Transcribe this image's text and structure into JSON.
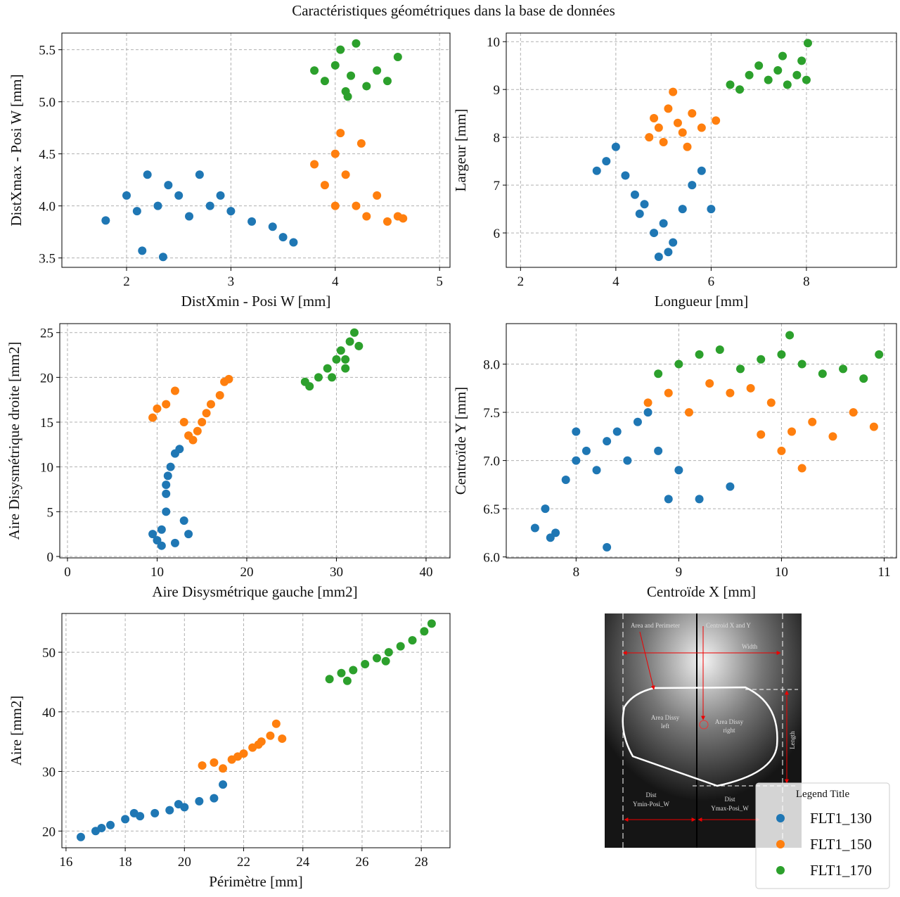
{
  "title": "Caractéristiques géométriques dans la base de données",
  "legend": {
    "title": "Legend Title"
  },
  "diagram": {
    "labels": [
      "Area and Perimeter",
      "Centroid X and Y",
      "Width",
      "Area  Dissy",
      "left",
      "Area  Dissy",
      "right",
      "Length",
      "Dist",
      "Ymin-Posi_W",
      "Dist",
      "Ymax-Posi_W"
    ]
  },
  "chart_data": [
    {
      "type": "scatter",
      "xlabel": "DistXmin - Posi W [mm]",
      "ylabel": "DistXmax - Posi W [mm]",
      "grid": true,
      "xlim": [
        1.38,
        5.1
      ],
      "ylim": [
        3.41,
        5.66
      ],
      "xticks": [
        2,
        3,
        4,
        5
      ],
      "yticks": [
        3.5,
        {
          "value": 4,
          "label": "4.0"
        },
        4.5,
        {
          "value": 5,
          "label": "5.0"
        },
        5.5
      ],
      "series": [
        {
          "name": "FLT1_130",
          "color": "#1f77b4",
          "x": [
            1.8,
            2.0,
            2.1,
            2.2,
            2.3,
            2.4,
            2.5,
            2.6,
            2.7,
            2.8,
            2.9,
            3.0,
            3.2,
            3.4,
            3.5,
            3.6,
            2.35,
            2.15
          ],
          "values": [
            3.86,
            4.1,
            3.95,
            4.3,
            4.0,
            4.2,
            4.1,
            3.9,
            4.3,
            4.0,
            4.1,
            3.95,
            3.85,
            3.8,
            3.7,
            3.65,
            3.51,
            3.57
          ]
        },
        {
          "name": "FLT1_150",
          "color": "#ff7f0e",
          "x": [
            3.8,
            3.9,
            4.0,
            4.05,
            4.1,
            4.2,
            4.3,
            4.4,
            4.5,
            4.6,
            4.65,
            4.0,
            4.25
          ],
          "values": [
            4.4,
            4.2,
            4.5,
            4.7,
            4.3,
            4.0,
            3.9,
            4.1,
            3.85,
            3.9,
            3.88,
            4.0,
            4.6
          ]
        },
        {
          "name": "FLT1_170",
          "color": "#2ca02c",
          "x": [
            3.8,
            3.9,
            4.0,
            4.05,
            4.1,
            4.15,
            4.2,
            4.3,
            4.4,
            4.5,
            4.6,
            4.12
          ],
          "values": [
            5.3,
            5.2,
            5.35,
            5.5,
            5.1,
            5.25,
            5.56,
            5.15,
            5.3,
            5.2,
            5.43,
            5.05
          ]
        }
      ]
    },
    {
      "type": "scatter",
      "xlabel": "Longueur [mm]",
      "ylabel": "Largeur [mm]",
      "grid": true,
      "xlim": [
        1.7,
        9.89
      ],
      "ylim": [
        5.28,
        10.18
      ],
      "xticks": [
        2,
        4,
        6,
        8
      ],
      "yticks": [
        6,
        7,
        8,
        9,
        10
      ],
      "series": [
        {
          "color": "#1f77b4",
          "x": [
            3.6,
            3.8,
            4.0,
            4.2,
            4.4,
            4.5,
            4.6,
            4.8,
            5.0,
            5.2,
            5.4,
            5.6,
            5.8,
            6.0,
            4.9,
            5.1
          ],
          "values": [
            7.3,
            7.5,
            7.8,
            7.2,
            6.8,
            6.4,
            6.6,
            6.0,
            6.2,
            5.8,
            6.5,
            7.0,
            7.3,
            6.5,
            5.5,
            5.6
          ]
        },
        {
          "color": "#ff7f0e",
          "x": [
            4.7,
            4.8,
            4.9,
            5.0,
            5.1,
            5.2,
            5.3,
            5.4,
            5.5,
            5.6,
            5.8,
            6.1
          ],
          "values": [
            8.0,
            8.4,
            8.2,
            7.9,
            8.6,
            8.95,
            8.3,
            8.1,
            7.8,
            8.5,
            8.2,
            8.35
          ]
        },
        {
          "color": "#2ca02c",
          "x": [
            6.4,
            6.6,
            6.8,
            7.0,
            7.2,
            7.4,
            7.5,
            7.6,
            7.8,
            7.9,
            8.0,
            8.03
          ],
          "values": [
            9.1,
            9.0,
            9.3,
            9.5,
            9.2,
            9.4,
            9.7,
            9.1,
            9.3,
            9.6,
            9.2,
            9.97
          ]
        }
      ]
    },
    {
      "type": "scatter",
      "xlabel": "Aire Disysmétrique gauche [mm2]",
      "ylabel": "Aire Disysmétrique droite [mm2]",
      "grid": true,
      "xlim": [
        -0.86,
        42.67
      ],
      "ylim": [
        -0.16,
        26.0
      ],
      "xticks": [
        0,
        10,
        20,
        30,
        40
      ],
      "yticks": [
        0,
        5,
        10,
        15,
        20,
        25
      ],
      "series": [
        {
          "color": "#1f77b4",
          "x": [
            9.5,
            10,
            10.5,
            11,
            11,
            11.5,
            12,
            12.5,
            13,
            13.5,
            11,
            10.5,
            12,
            11.2
          ],
          "values": [
            2.5,
            1.8,
            3,
            5,
            8,
            10,
            11.5,
            12,
            4,
            2.5,
            7,
            1.2,
            1.5,
            9
          ]
        },
        {
          "color": "#ff7f0e",
          "x": [
            9.5,
            10,
            11,
            12,
            13,
            13.5,
            14,
            14.5,
            15,
            15.5,
            16,
            17,
            17.5,
            18
          ],
          "values": [
            15.5,
            16.5,
            17,
            18.5,
            15,
            13.5,
            13,
            14,
            15,
            16,
            17,
            18,
            19.5,
            19.8
          ]
        },
        {
          "color": "#2ca02c",
          "x": [
            26.5,
            27,
            28,
            29,
            29.5,
            30,
            30.5,
            31,
            31.5,
            32,
            32.5,
            31
          ],
          "values": [
            19.5,
            19,
            20,
            21,
            20,
            22,
            23,
            22,
            24,
            25,
            23.5,
            21
          ]
        }
      ]
    },
    {
      "type": "scatter",
      "xlabel": "Centroïde X [mm]",
      "ylabel": "Centroïde Y [mm]",
      "grid": true,
      "xlim": [
        7.32,
        11.12
      ],
      "ylim": [
        5.99,
        8.42
      ],
      "xticks": [
        8,
        9,
        10,
        11
      ],
      "yticks": [
        {
          "value": 6,
          "label": "6.0"
        },
        6.5,
        {
          "value": 7,
          "label": "7.0"
        },
        7.5,
        {
          "value": 8,
          "label": "8.0"
        }
      ],
      "series": [
        {
          "color": "#1f77b4",
          "x": [
            7.6,
            7.7,
            7.8,
            7.9,
            8.0,
            8.1,
            8.2,
            8.3,
            8.4,
            8.5,
            8.6,
            8.7,
            8.8,
            8.9,
            9.0,
            9.2,
            9.5,
            7.75,
            8.3,
            8.0
          ],
          "values": [
            6.3,
            6.5,
            6.25,
            6.8,
            7.0,
            7.1,
            6.9,
            7.2,
            7.3,
            7.0,
            7.4,
            7.5,
            7.1,
            6.6,
            6.9,
            6.6,
            6.73,
            6.2,
            6.1,
            7.3
          ]
        },
        {
          "color": "#ff7f0e",
          "x": [
            8.7,
            8.9,
            9.1,
            9.3,
            9.5,
            9.7,
            9.9,
            10.1,
            10.3,
            10.5,
            10.7,
            10.9,
            10.0,
            10.2,
            9.8
          ],
          "values": [
            7.6,
            7.7,
            7.5,
            7.8,
            7.7,
            7.75,
            7.6,
            7.3,
            7.4,
            7.25,
            7.5,
            7.35,
            7.1,
            6.92,
            7.27
          ]
        },
        {
          "color": "#2ca02c",
          "x": [
            8.8,
            9.0,
            9.2,
            9.4,
            9.6,
            9.8,
            10.0,
            10.2,
            10.4,
            10.6,
            10.8,
            10.95,
            10.08
          ],
          "values": [
            7.9,
            8.0,
            8.1,
            8.15,
            7.95,
            8.05,
            8.1,
            8.0,
            7.9,
            7.95,
            7.85,
            8.1,
            8.3
          ]
        }
      ]
    },
    {
      "type": "scatter",
      "xlabel": "Périmètre [mm]",
      "ylabel": "Aire [mm2]",
      "grid": true,
      "xlim": [
        15.86,
        28.97
      ],
      "ylim": [
        17.2,
        56.5
      ],
      "xticks": [
        16,
        18,
        20,
        22,
        24,
        26,
        28
      ],
      "yticks": [
        20,
        30,
        40,
        50
      ],
      "series": [
        {
          "color": "#1f77b4",
          "x": [
            16.5,
            17,
            17.5,
            18,
            18.5,
            19,
            19.5,
            20,
            20.5,
            21,
            21.3,
            17.2,
            18.3,
            19.8
          ],
          "values": [
            19,
            20,
            21,
            22,
            22.5,
            23,
            23.5,
            24,
            25,
            25.5,
            27.8,
            20.5,
            23,
            24.5
          ]
        },
        {
          "color": "#ff7f0e",
          "x": [
            20.6,
            21,
            21.3,
            21.6,
            22,
            22.3,
            22.6,
            22.9,
            23.1,
            23.3,
            21.8,
            22.5
          ],
          "values": [
            31,
            31.5,
            30.5,
            32,
            33,
            34,
            35,
            36,
            38,
            35.5,
            32.5,
            34.5
          ]
        },
        {
          "color": "#2ca02c",
          "x": [
            24.9,
            25.3,
            25.7,
            26.1,
            26.5,
            26.9,
            27.3,
            27.7,
            28.1,
            28.35,
            25.5,
            26.8
          ],
          "values": [
            45.5,
            46.5,
            47,
            48,
            49,
            50,
            51,
            52,
            53.5,
            54.8,
            45.2,
            48.5
          ]
        }
      ]
    }
  ]
}
